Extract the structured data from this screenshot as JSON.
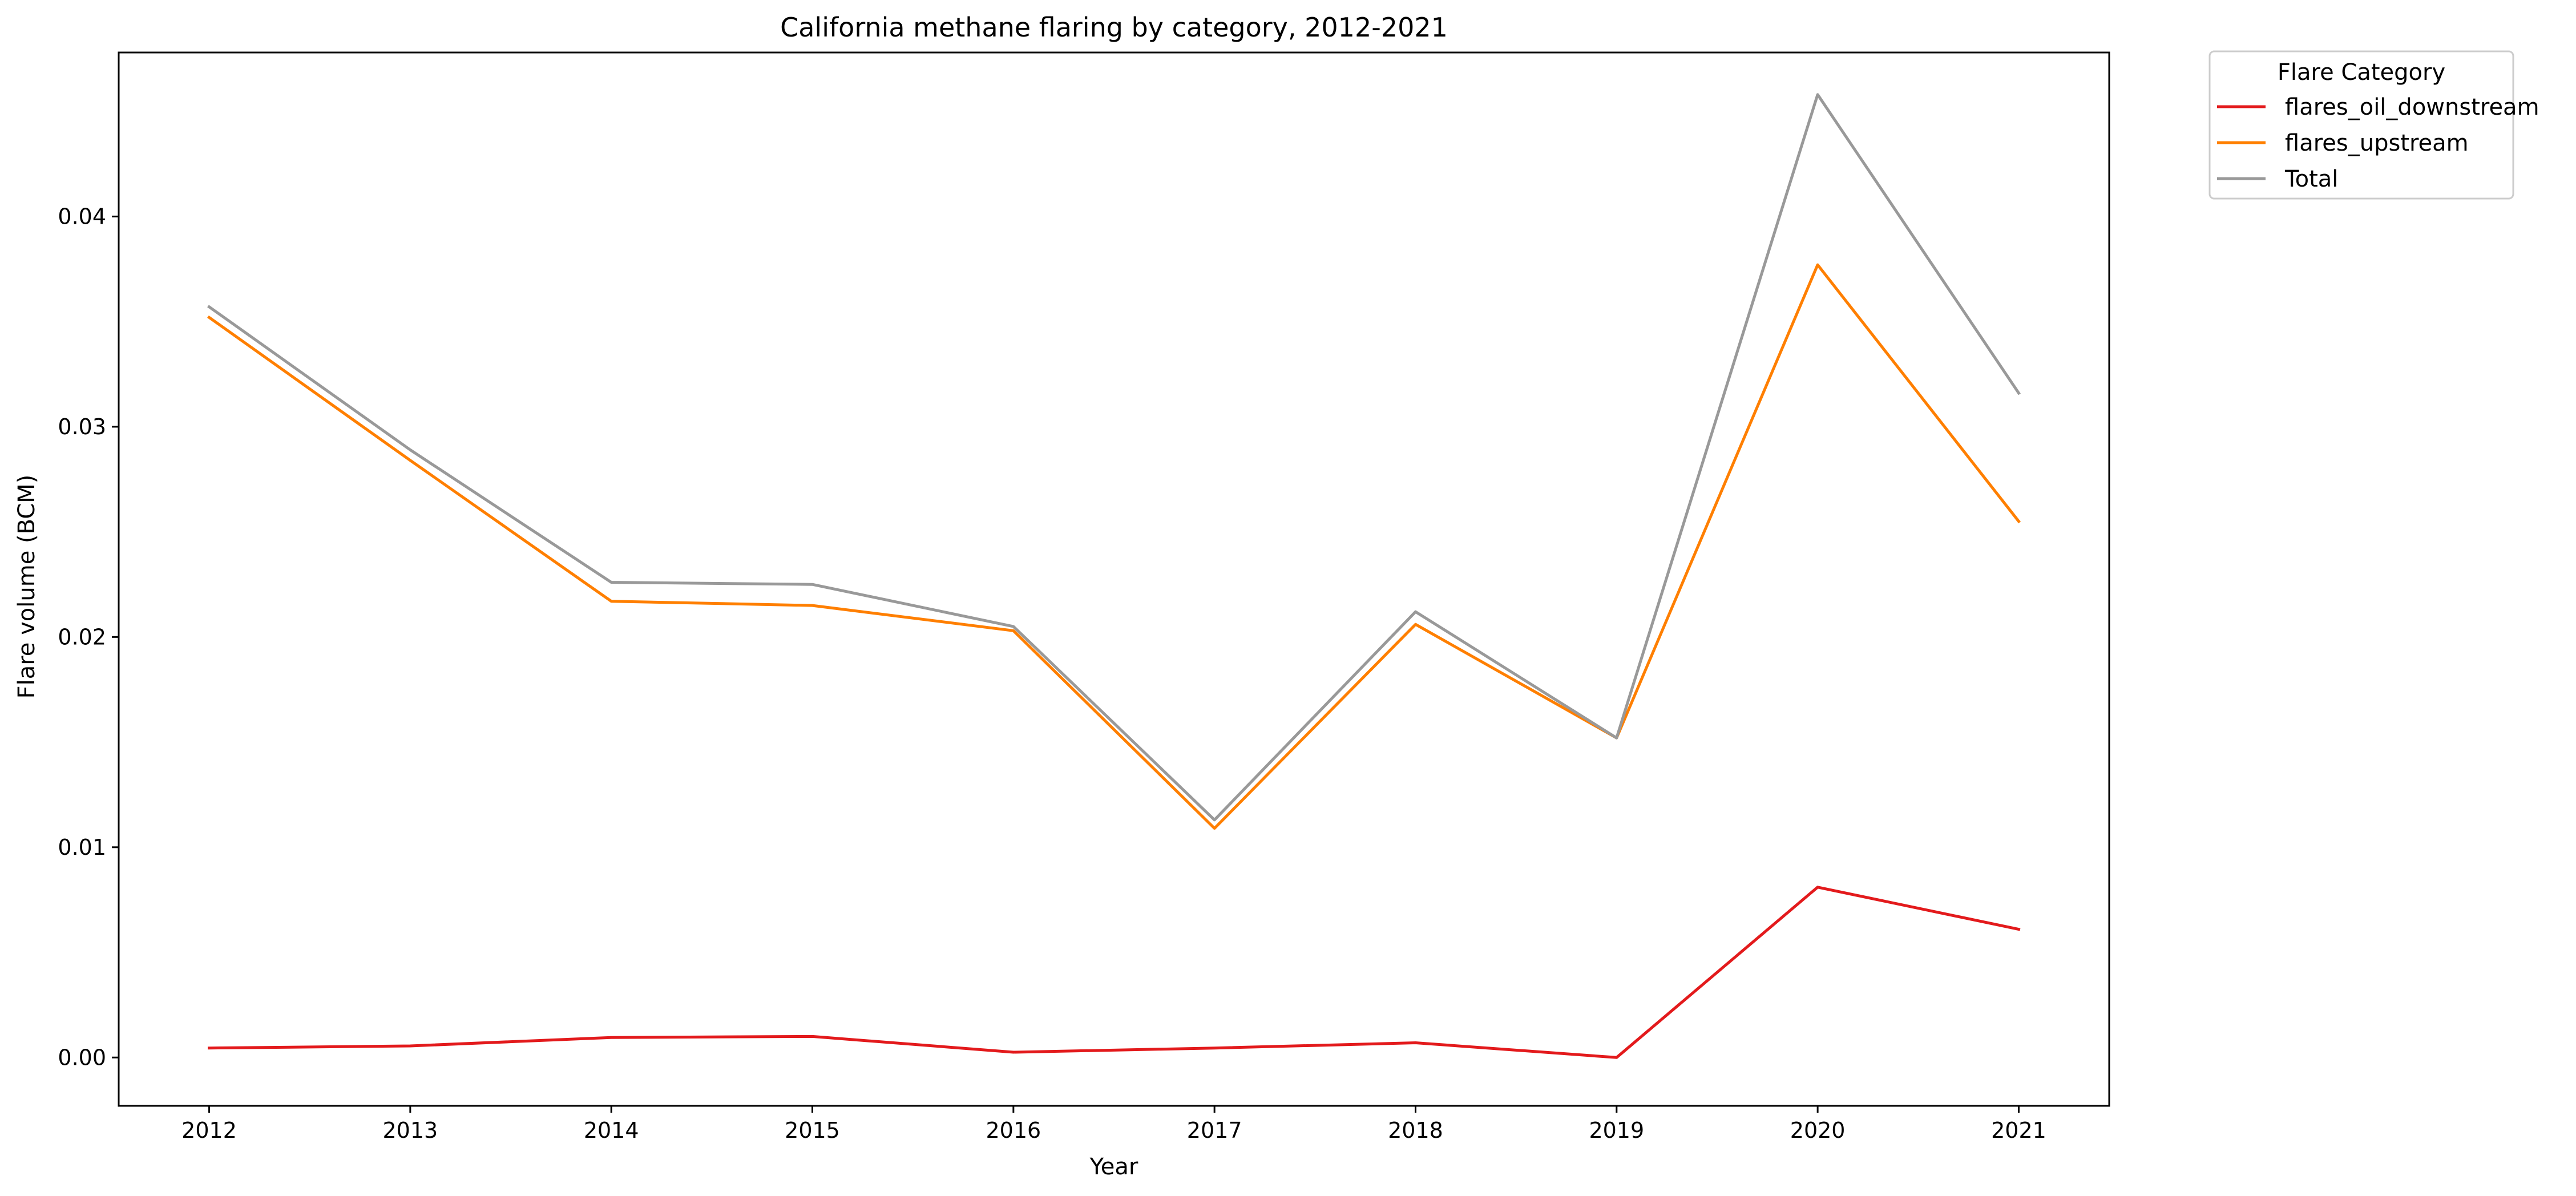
{
  "chart_data": {
    "type": "line",
    "title": "California methane flaring by category, 2012-2021",
    "xlabel": "Year",
    "ylabel": "Flare volume (BCM)",
    "x": [
      "2012",
      "2013",
      "2014",
      "2015",
      "2016",
      "2017",
      "2018",
      "2019",
      "2020",
      "2021"
    ],
    "xlim": [
      2011.55,
      2021.45
    ],
    "ylim": [
      -0.0023,
      0.0478
    ],
    "yticks": [
      0.0,
      0.01,
      0.02,
      0.03,
      0.04
    ],
    "ytick_labels": [
      "0.00",
      "0.01",
      "0.02",
      "0.03",
      "0.04"
    ],
    "grid": false,
    "legend": {
      "title": "Flare Category",
      "placement": "outside-top-right"
    },
    "series": [
      {
        "name": "flares_oil_downstream",
        "color": "#e31a1c",
        "values": [
          0.00045,
          0.00055,
          0.00095,
          0.001,
          0.00025,
          0.00045,
          0.0007,
          0.0,
          0.0081,
          0.0061
        ]
      },
      {
        "name": "flares_upstream",
        "color": "#ff7f00",
        "values": [
          0.0352,
          0.0284,
          0.0217,
          0.0215,
          0.0203,
          0.0109,
          0.0206,
          0.0152,
          0.0377,
          0.0255
        ]
      },
      {
        "name": "Total",
        "color": "#999999",
        "values": [
          0.0357,
          0.0289,
          0.0226,
          0.0225,
          0.0205,
          0.0113,
          0.0212,
          0.0152,
          0.0458,
          0.0316
        ]
      }
    ]
  }
}
